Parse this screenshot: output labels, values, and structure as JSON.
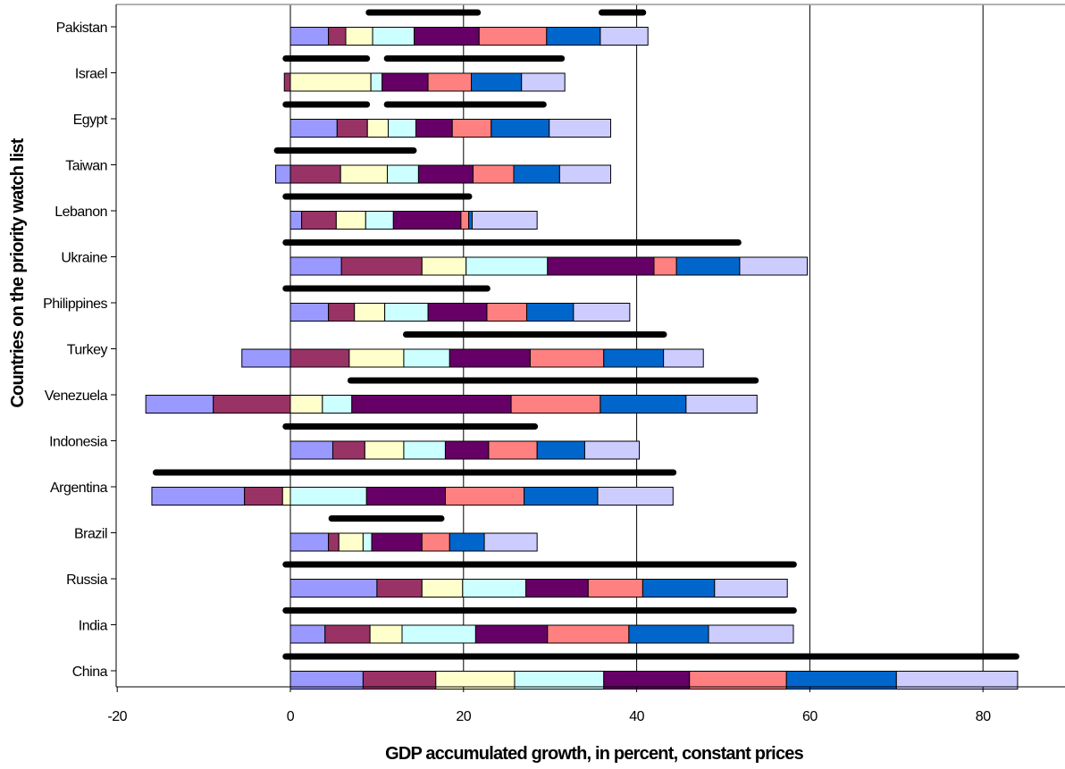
{
  "chart_data": {
    "type": "bar",
    "orientation": "horizontal",
    "stacked": true,
    "xlabel": "GDP accumulated growth, in percent, constant prices",
    "ylabel": "Countries on the priority watch list",
    "xlim": [
      -20,
      90
    ],
    "xticks": [
      -20,
      0,
      20,
      40,
      60,
      80
    ],
    "grid": "vertical",
    "segment_colors": [
      "#9999ff",
      "#993366",
      "#ffffcc",
      "#ccffff",
      "#660066",
      "#ff8080",
      "#0066cc",
      "#ccccff"
    ],
    "black_bar_color": "#000000",
    "categories": [
      "Pakistan",
      "Israel",
      "Egypt",
      "Taiwan",
      "Lebanon",
      "Ukraine",
      "Philippines",
      "Turkey",
      "Venezuela",
      "Indonesia",
      "Argentina",
      "Brazil",
      "Russia",
      "India",
      "China"
    ],
    "rows": [
      {
        "name": "Pakistan",
        "segments": [
          [
            0,
            4.4
          ],
          [
            4.4,
            6.4
          ],
          [
            6.4,
            9.5
          ],
          [
            9.5,
            14.3
          ],
          [
            14.3,
            21.8
          ],
          [
            21.8,
            29.6
          ],
          [
            29.6,
            35.8
          ],
          [
            35.8,
            41.3
          ]
        ],
        "black": [
          [
            8.7,
            22
          ],
          [
            35.6,
            41.1
          ]
        ]
      },
      {
        "name": "Israel",
        "segments": [
          [
            -0.7,
            0
          ],
          [
            0,
            9.3
          ],
          [
            9.3,
            10.6
          ],
          [
            10.6,
            15.9
          ],
          [
            15.9,
            20.9
          ],
          [
            20.9,
            26.7
          ],
          [
            26.7,
            31.7
          ]
        ],
        "black": [
          [
            -0.9,
            9.2
          ],
          [
            10.8,
            31.7
          ]
        ]
      },
      {
        "name": "Egypt",
        "segments": [
          [
            0,
            5.4
          ],
          [
            5.4,
            8.9
          ],
          [
            8.9,
            11.3
          ],
          [
            11.3,
            14.5
          ],
          [
            14.5,
            18.7
          ],
          [
            18.7,
            23.2
          ],
          [
            23.2,
            29.9
          ],
          [
            29.9,
            37.0
          ]
        ],
        "black": [
          [
            -0.9,
            9.2
          ],
          [
            10.8,
            29.6
          ]
        ]
      },
      {
        "name": "Taiwan",
        "segments": [
          [
            -1.7,
            0
          ],
          [
            0,
            5.8
          ],
          [
            5.8,
            11.2
          ],
          [
            11.2,
            14.8
          ],
          [
            14.8,
            21.1
          ],
          [
            21.1,
            25.8
          ],
          [
            25.8,
            31.1
          ],
          [
            31.1,
            37.0
          ]
        ],
        "black": [
          [
            -1.9,
            14.6
          ]
        ]
      },
      {
        "name": "Lebanon",
        "segments": [
          [
            0,
            1.3
          ],
          [
            1.3,
            5.3
          ],
          [
            5.3,
            8.7
          ],
          [
            8.7,
            11.9
          ],
          [
            11.9,
            19.7
          ],
          [
            19.7,
            20.6
          ],
          [
            20.6,
            21.0
          ],
          [
            21.0,
            28.5
          ]
        ],
        "black": [
          [
            -0.9,
            21.0
          ]
        ]
      },
      {
        "name": "Ukraine",
        "segments": [
          [
            0,
            5.9
          ],
          [
            5.9,
            15.2
          ],
          [
            15.2,
            20.3
          ],
          [
            20.3,
            29.7
          ],
          [
            29.7,
            42.0
          ],
          [
            42.0,
            44.6
          ],
          [
            44.6,
            51.9
          ],
          [
            51.9,
            59.7
          ]
        ],
        "black": [
          [
            -0.9,
            52.1
          ]
        ]
      },
      {
        "name": "Philippines",
        "segments": [
          [
            0,
            4.4
          ],
          [
            4.4,
            7.4
          ],
          [
            7.4,
            10.9
          ],
          [
            10.9,
            15.9
          ],
          [
            15.9,
            22.7
          ],
          [
            22.7,
            27.3
          ],
          [
            27.3,
            32.7
          ],
          [
            32.7,
            39.2
          ]
        ],
        "black": [
          [
            -0.9,
            23.1
          ]
        ]
      },
      {
        "name": "Turkey",
        "segments": [
          [
            -5.6,
            0
          ],
          [
            0,
            6.8
          ],
          [
            6.8,
            13.1
          ],
          [
            13.1,
            18.4
          ],
          [
            18.4,
            27.7
          ],
          [
            27.7,
            36.2
          ],
          [
            36.2,
            43.1
          ],
          [
            43.1,
            47.7
          ]
        ],
        "black": [
          [
            13.0,
            43.5
          ]
        ]
      },
      {
        "name": "Venezuela",
        "segments": [
          [
            -16.7,
            -8.9
          ],
          [
            -8.9,
            0
          ],
          [
            0,
            3.7
          ],
          [
            3.7,
            7.1
          ],
          [
            7.1,
            25.5
          ],
          [
            25.5,
            35.8
          ],
          [
            35.8,
            45.7
          ],
          [
            45.7,
            53.9
          ]
        ],
        "black": [
          [
            6.6,
            54.1
          ]
        ]
      },
      {
        "name": "Indonesia",
        "segments": [
          [
            0,
            4.9
          ],
          [
            4.9,
            8.6
          ],
          [
            8.6,
            13.1
          ],
          [
            13.1,
            17.9
          ],
          [
            17.9,
            22.9
          ],
          [
            22.9,
            28.5
          ],
          [
            28.5,
            34.0
          ],
          [
            34.0,
            40.3
          ]
        ],
        "black": [
          [
            -0.9,
            28.6
          ]
        ]
      },
      {
        "name": "Argentina",
        "segments": [
          [
            -16.0,
            -5.3
          ],
          [
            -5.3,
            -0.9
          ],
          [
            -0.9,
            0
          ],
          [
            0,
            8.8
          ],
          [
            8.8,
            17.9
          ],
          [
            17.9,
            27.0
          ],
          [
            27.0,
            35.5
          ],
          [
            35.5,
            44.2
          ]
        ],
        "black": [
          [
            -15.9,
            44.6
          ]
        ]
      },
      {
        "name": "Brazil",
        "segments": [
          [
            0,
            4.4
          ],
          [
            4.4,
            5.6
          ],
          [
            5.6,
            8.4
          ],
          [
            8.4,
            9.4
          ],
          [
            9.4,
            15.2
          ],
          [
            15.2,
            18.4
          ],
          [
            18.4,
            22.4
          ],
          [
            22.4,
            28.5
          ]
        ],
        "black": [
          [
            4.4,
            17.8
          ]
        ]
      },
      {
        "name": "Russia",
        "segments": [
          [
            0,
            10.0
          ],
          [
            10.0,
            15.2
          ],
          [
            15.2,
            19.9
          ],
          [
            19.9,
            27.2
          ],
          [
            27.2,
            34.4
          ],
          [
            34.4,
            40.7
          ],
          [
            40.7,
            49.0
          ],
          [
            49.0,
            57.4
          ]
        ],
        "black": [
          [
            -0.9,
            58.5
          ]
        ]
      },
      {
        "name": "India",
        "segments": [
          [
            0,
            4.0
          ],
          [
            4.0,
            9.2
          ],
          [
            9.2,
            12.9
          ],
          [
            12.9,
            21.4
          ],
          [
            21.4,
            29.7
          ],
          [
            29.7,
            39.1
          ],
          [
            39.1,
            48.3
          ],
          [
            48.3,
            58.1
          ]
        ],
        "black": [
          [
            -0.9,
            58.5
          ]
        ]
      },
      {
        "name": "China",
        "segments": [
          [
            0,
            8.4
          ],
          [
            8.4,
            16.8
          ],
          [
            16.8,
            25.9
          ],
          [
            25.9,
            36.2
          ],
          [
            36.2,
            46.1
          ],
          [
            46.1,
            57.3
          ],
          [
            57.3,
            70.0
          ],
          [
            70.0,
            84.0
          ]
        ],
        "black": [
          [
            -0.9,
            84.2
          ]
        ]
      }
    ]
  }
}
